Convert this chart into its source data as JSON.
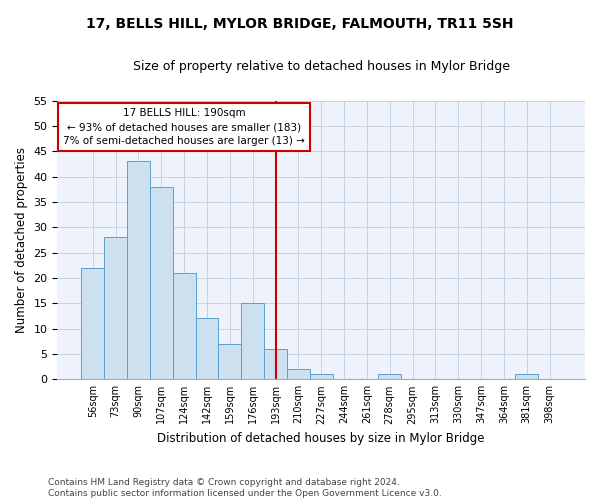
{
  "title1": "17, BELLS HILL, MYLOR BRIDGE, FALMOUTH, TR11 5SH",
  "title2": "Size of property relative to detached houses in Mylor Bridge",
  "xlabel": "Distribution of detached houses by size in Mylor Bridge",
  "ylabel": "Number of detached properties",
  "bar_labels": [
    "56sqm",
    "73sqm",
    "90sqm",
    "107sqm",
    "124sqm",
    "142sqm",
    "159sqm",
    "176sqm",
    "193sqm",
    "210sqm",
    "227sqm",
    "244sqm",
    "261sqm",
    "278sqm",
    "295sqm",
    "313sqm",
    "330sqm",
    "347sqm",
    "364sqm",
    "381sqm",
    "398sqm"
  ],
  "bar_values": [
    22,
    28,
    43,
    38,
    21,
    12,
    7,
    15,
    6,
    2,
    1,
    0,
    0,
    1,
    0,
    0,
    0,
    0,
    0,
    1,
    0
  ],
  "bar_color": "#cce0f0",
  "bar_edge_color": "#5a9ecf",
  "vline_x": 8,
  "vline_color": "#cc0000",
  "annotation_text": "17 BELLS HILL: 190sqm\n← 93% of detached houses are smaller (183)\n7% of semi-detached houses are larger (13) →",
  "annotation_box_color": "#cc0000",
  "ylim": [
    0,
    55
  ],
  "yticks": [
    0,
    5,
    10,
    15,
    20,
    25,
    30,
    35,
    40,
    45,
    50,
    55
  ],
  "footer_line1": "Contains HM Land Registry data © Crown copyright and database right 2024.",
  "footer_line2": "Contains public sector information licensed under the Open Government Licence v3.0.",
  "bg_color": "#eef2fb",
  "grid_color": "#c0cce0"
}
